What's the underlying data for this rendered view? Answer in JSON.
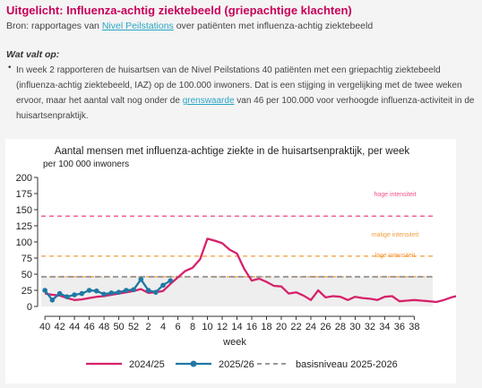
{
  "header": {
    "title": "Uitgelicht: Influenza-achtig ziektebeeld (griepachtige klachten)",
    "source_prefix": "Bron: rapportages van ",
    "source_link": "Nivel Peilstations",
    "source_suffix": " over patiënten met influenza-achtig ziektebeeld"
  },
  "content": {
    "section_heading": "Wat valt op:",
    "bullet_symbol": "•",
    "paragraph_part1": "In week 2 rapporteren de huisartsen van de Nivel Peilstations 40 patiënten met een griepachtig ziektebeeld (influenza-achtig ziektebeeld, IAZ) op de 100.000 inwoners. Dat is een stijging in vergelijking met de twee weken ervoor, maar het aantal valt nog onder de ",
    "paragraph_link": "grenswaarde",
    "paragraph_part2": " van 46 per 100.000 voor verhoogde influenza-activiteit in de huisartsenpraktijk."
  },
  "colors": {
    "accent": "#c8005a",
    "link": "#2aa5c4",
    "series_2024": "#d6226b",
    "series_2025": "#1f78a4",
    "baseline": "#999999",
    "high": "#f0528c",
    "medium": "#f39c3c",
    "low": "#f39c3c"
  },
  "chart_data": {
    "type": "line",
    "title": "Aantal mensen met influenza-achtige ziekte in de huisartsenpraktijk, per week",
    "ylabel": "per 100 000 inwoners",
    "xlabel": "week",
    "ylim": [
      0,
      200
    ],
    "yticks": [
      0,
      25,
      50,
      75,
      100,
      125,
      150,
      175,
      200
    ],
    "x_ticks": [
      "40",
      "42",
      "44",
      "46",
      "48",
      "50",
      "52",
      "2",
      "4",
      "6",
      "8",
      "10",
      "12",
      "14",
      "16",
      "18",
      "20",
      "22",
      "24",
      "26",
      "28",
      "30",
      "32",
      "34",
      "36",
      "38"
    ],
    "grid": false,
    "legend_position": "bottom",
    "bands": [
      {
        "label": "hoge intensiteit",
        "value": 140,
        "color": "#f0528c"
      },
      {
        "label": "matige intensiteit",
        "value": 78,
        "color": "#f39c3c"
      },
      {
        "label": "lage intensiteit",
        "value": 46,
        "color": "#f39c3c"
      }
    ],
    "series": [
      {
        "name": "2024/25",
        "color": "#d6226b",
        "start_week_index": 0,
        "values": [
          20,
          18,
          17,
          13,
          10,
          11,
          13,
          15,
          16,
          18,
          20,
          22,
          24,
          27,
          21,
          22,
          24,
          35,
          45,
          55,
          60,
          73,
          105,
          102,
          98,
          88,
          82,
          58,
          40,
          43,
          38,
          32,
          31,
          20,
          22,
          17,
          10,
          25,
          14,
          16,
          15,
          10,
          15,
          13,
          12,
          10,
          15,
          16,
          8,
          9,
          10,
          9,
          8,
          7,
          10,
          14,
          17,
          18
        ]
      },
      {
        "name": "2025/26",
        "color": "#1f78a4",
        "start_week_index": 0,
        "values": [
          25,
          10,
          20,
          15,
          18,
          20,
          25,
          24,
          19,
          21,
          22,
          25,
          26,
          42,
          25,
          22,
          33,
          40
        ]
      },
      {
        "name": "basisniveau 2025-2026",
        "color": "#999999",
        "constant": 46
      }
    ]
  }
}
